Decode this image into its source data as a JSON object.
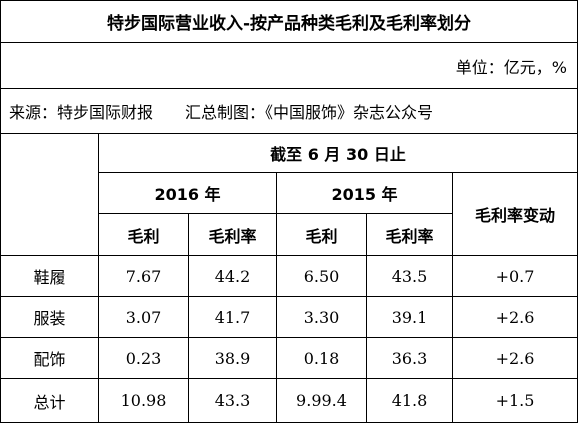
{
  "title": "特步国际营业收入-按产品种类毛利及毛利率划分",
  "unit": "单位：亿元，%",
  "source": {
    "label": "来源：特步国际财报",
    "credit": "汇总制图：《中国服饰》杂志公众号"
  },
  "header": {
    "period": "截至 6 月 30 日止",
    "years": [
      "2016 年",
      "2015 年"
    ],
    "change": "毛利率变动",
    "metrics": [
      "毛利",
      "毛利率",
      "毛利",
      "毛利率"
    ]
  },
  "rows": [
    [
      "鞋履",
      "7.67",
      "44.2",
      "6.50",
      "43.5",
      "+0.7"
    ],
    [
      "服装",
      "3.07",
      "41.7",
      "3.30",
      "39.1",
      "+2.6"
    ],
    [
      "配饰",
      "0.23",
      "38.9",
      "0.18",
      "36.3",
      "+2.6"
    ],
    [
      "总计",
      "10.98",
      "43.3",
      "9.99.4",
      "41.8",
      "+1.5"
    ]
  ]
}
